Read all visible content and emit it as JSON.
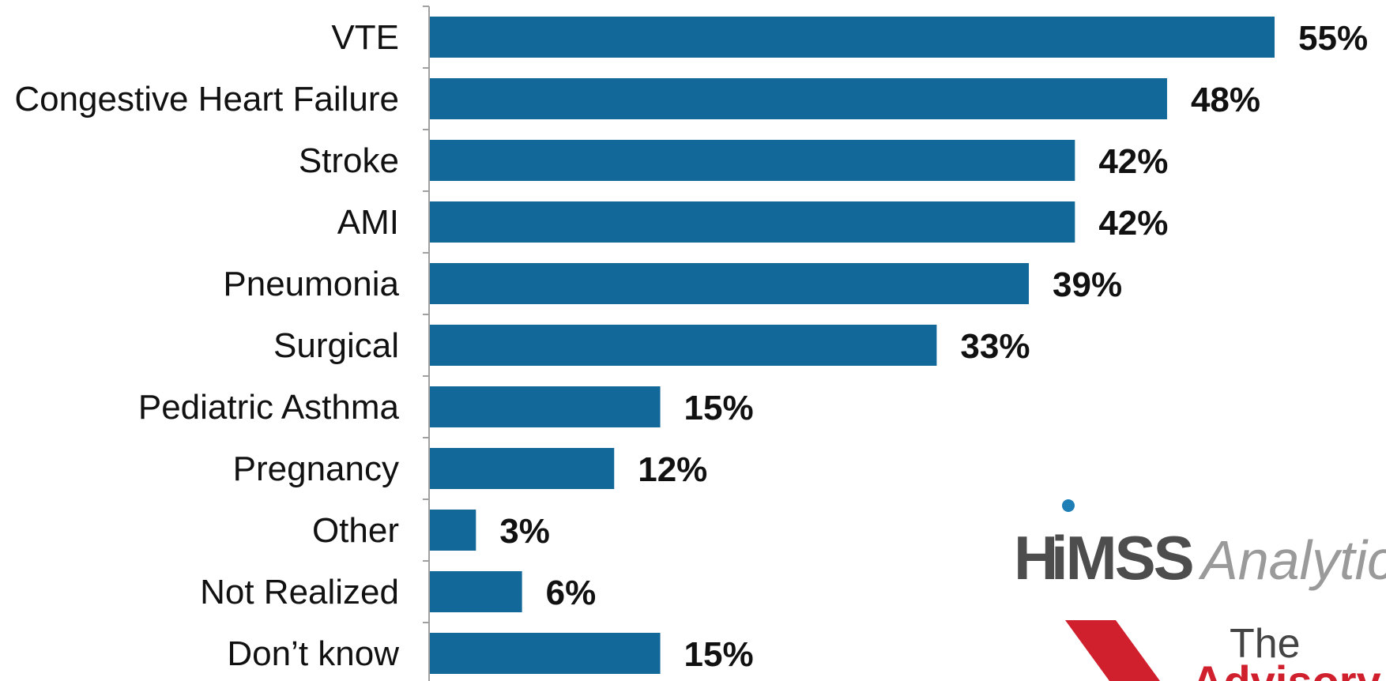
{
  "chart_data": {
    "type": "bar",
    "orientation": "horizontal",
    "categories": [
      "VTE",
      "Congestive Heart Failure",
      "Stroke",
      "AMI",
      "Pneumonia",
      "Surgical",
      "Pediatric Asthma",
      "Pregnancy",
      "Other",
      "Not Realized",
      "Don’t know"
    ],
    "values": [
      55,
      48,
      42,
      42,
      39,
      33,
      15,
      12,
      3,
      6,
      15
    ],
    "data_labels": [
      "55%",
      "48%",
      "42%",
      "42%",
      "39%",
      "33%",
      "15%",
      "12%",
      "3%",
      "6%",
      "15%"
    ],
    "unit": "%",
    "xlim": [
      0,
      55
    ],
    "grid": false,
    "bar_color": "#126899"
  },
  "logos": {
    "himss": {
      "text_a": "H",
      "text_b": "iMSS",
      "text_c": "Analytics",
      "color_dark": "#4d4d4d",
      "color_light": "#9a9a9a",
      "dot_color": "#1d7fb5"
    },
    "advisory": {
      "text_the": "The",
      "text_name": "Advisory",
      "brand_color": "#d0202e"
    }
  }
}
